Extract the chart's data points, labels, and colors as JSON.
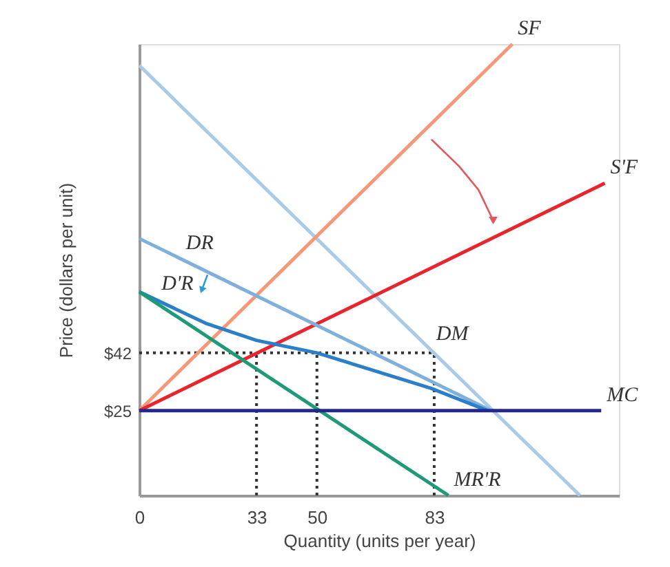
{
  "chart_data": {
    "type": "line",
    "xlabel": "Quantity (units per year)",
    "ylabel": "Price (dollars per unit)",
    "xlim": [
      0,
      135
    ],
    "ylim": [
      0,
      133
    ],
    "xticks": [
      0,
      33,
      50,
      83
    ],
    "yticks": [
      {
        "value": 25,
        "label": "$25"
      },
      {
        "value": 42,
        "label": "$42"
      }
    ],
    "grid": false,
    "legend": false,
    "marker": "none",
    "series": [
      {
        "color": "#a9cbe8",
        "x": [
          0,
          124
        ],
        "values": [
          126.7,
          0
        ]
      },
      {
        "color": "#f4987a",
        "x": [
          0,
          105
        ],
        "values": [
          25,
          133
        ]
      },
      {
        "color": "#e8242c",
        "x": [
          0,
          131
        ],
        "values": [
          25,
          92
        ]
      },
      {
        "color": "#7fb0dc",
        "x": [
          0,
          99
        ],
        "values": [
          75.7,
          25
        ]
      },
      {
        "color": "#2a7fc8",
        "x": [
          0,
          19,
          33,
          50,
          82,
          98
        ],
        "values": [
          60,
          50.6,
          45.7,
          42,
          31.6,
          25
        ]
      },
      {
        "color": "#1e9a78",
        "x": [
          0,
          87
        ],
        "values": [
          60,
          0
        ]
      },
      {
        "color": "#24288a",
        "x": [
          0,
          130
        ],
        "values": [
          25,
          25
        ]
      },
      {
        "color": "#333333",
        "line_style": "dotted",
        "x": [
          0,
          83
        ],
        "values": [
          42,
          42
        ]
      },
      {
        "color": "#333333",
        "line_style": "dotted",
        "x": [
          33,
          33
        ],
        "values": [
          0,
          42
        ]
      },
      {
        "color": "#333333",
        "line_style": "dotted",
        "x": [
          50,
          50
        ],
        "values": [
          0,
          42
        ]
      },
      {
        "color": "#333333",
        "line_style": "dotted",
        "x": [
          83,
          83
        ],
        "values": [
          0,
          42
        ]
      }
    ],
    "annotations": [
      {
        "text": "SF",
        "x": 105,
        "y": 133
      },
      {
        "text": "S'F",
        "x": 131,
        "y": 92
      },
      {
        "text": "DR",
        "x": 11.6,
        "y": 69.8
      },
      {
        "text": "D'R",
        "x": 4.7,
        "y": 57.7
      },
      {
        "text": "DM",
        "x": 82,
        "y": 42.9
      },
      {
        "text": "MC",
        "x": 130,
        "y": 25
      },
      {
        "text": "MR'R",
        "x": 87,
        "y": 0
      }
    ]
  }
}
